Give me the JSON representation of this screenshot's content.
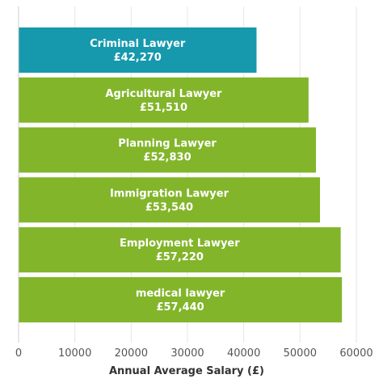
{
  "chart_data": {
    "type": "bar",
    "orientation": "horizontal",
    "categories": [
      "Criminal Lawyer",
      "Agricultural Lawyer",
      "Planning Lawyer",
      "Immigration Lawyer",
      "Employment Lawyer",
      "medical lawyer"
    ],
    "values": [
      42270,
      51510,
      52830,
      53540,
      57220,
      57440
    ],
    "value_labels": [
      "£42,270",
      "£51,510",
      "£52,830",
      "£53,540",
      "£57,220",
      "£57,440"
    ],
    "colors": [
      "#1699ad",
      "#82b52a",
      "#82b52a",
      "#82b52a",
      "#82b52a",
      "#82b52a"
    ],
    "xlabel": "Annual Average Salary (£)",
    "xlim": [
      0,
      60000
    ],
    "xticks": [
      0,
      10000,
      20000,
      30000,
      40000,
      50000,
      60000
    ],
    "xtick_labels": [
      "0",
      "10000",
      "20000",
      "30000",
      "40000",
      "50000",
      "60000"
    ],
    "grid": "vertical",
    "legend": "none"
  }
}
